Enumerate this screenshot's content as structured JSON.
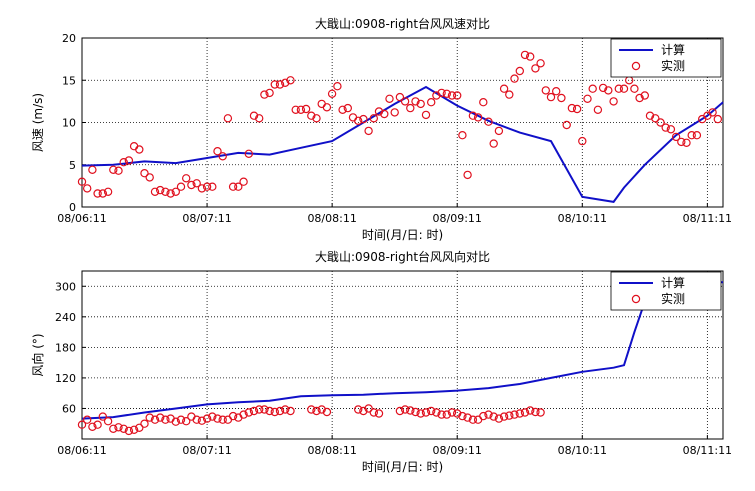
{
  "chart_data": [
    {
      "type": "line",
      "title": "大戢山:0908-right台风风速对比",
      "xlabel": "时间(月/日: 时)",
      "ylabel": "风速 (m/s)",
      "x_ticks": [
        "08/06:11",
        "08/07:11",
        "08/08:11",
        "08/09:11",
        "08/10:11",
        "08/11:11"
      ],
      "xlim": [
        0,
        123
      ],
      "ylim": [
        0,
        20
      ],
      "y_ticks": [
        0,
        5,
        10,
        15,
        20
      ],
      "grid": true,
      "legend_position": "top-right",
      "colors": {
        "computed": "#1010c8",
        "measured": "#e0101e"
      },
      "series": [
        {
          "name": "计算",
          "style": "line",
          "x": [
            0,
            6,
            12,
            18,
            24,
            30,
            36,
            42,
            48,
            54,
            60,
            66,
            72,
            78,
            84,
            90,
            96,
            102,
            104,
            108,
            114,
            120,
            123
          ],
          "values": [
            4.9,
            5.0,
            5.4,
            5.2,
            5.8,
            6.4,
            6.2,
            7.0,
            7.8,
            10.0,
            12.2,
            14.2,
            12.0,
            10.2,
            8.8,
            7.8,
            1.2,
            0.6,
            2.3,
            5.0,
            8.5,
            10.8,
            12.4
          ]
        },
        {
          "name": "实测",
          "style": "marker",
          "x": [
            0,
            1,
            2,
            3,
            4,
            5,
            6,
            7,
            8,
            9,
            10,
            11,
            12,
            13,
            14,
            15,
            16,
            17,
            18,
            19,
            20,
            21,
            22,
            23,
            24,
            25,
            26,
            27,
            28,
            29,
            30,
            31,
            32,
            33,
            34,
            35,
            36,
            37,
            38,
            39,
            40,
            41,
            42,
            43,
            44,
            45,
            46,
            47,
            48,
            49,
            50,
            51,
            52,
            53,
            54,
            55,
            56,
            57,
            58,
            59,
            60,
            61,
            62,
            63,
            64,
            65,
            66,
            67,
            68,
            69,
            70,
            71,
            72,
            73,
            74,
            75,
            76,
            77,
            78,
            79,
            80,
            81,
            82,
            83,
            84,
            85,
            86,
            87,
            88,
            89,
            90,
            91,
            92,
            93,
            94,
            95,
            96,
            97,
            98,
            99,
            100,
            101,
            102,
            103,
            104,
            105,
            106,
            107,
            108,
            109,
            110,
            111,
            112,
            113,
            114,
            115,
            116,
            117,
            118,
            119,
            120,
            121,
            122
          ],
          "values": [
            3.0,
            2.2,
            4.4,
            1.6,
            1.6,
            1.8,
            4.4,
            4.3,
            5.3,
            5.5,
            7.2,
            6.8,
            4.0,
            3.5,
            1.8,
            2.0,
            1.8,
            1.6,
            1.8,
            2.4,
            3.4,
            2.6,
            2.8,
            2.2,
            2.4,
            2.4,
            6.6,
            6.0,
            10.5,
            2.4,
            2.4,
            3.0,
            6.3,
            10.8,
            10.5,
            13.3,
            13.5,
            14.5,
            14.5,
            14.7,
            15.0,
            11.5,
            11.5,
            11.6,
            10.8,
            10.5,
            12.2,
            11.8,
            13.4,
            14.3,
            11.5,
            11.7,
            10.6,
            10.2,
            10.4,
            9.0,
            10.5,
            11.3,
            11.0,
            12.8,
            11.2,
            13.0,
            12.5,
            11.7,
            12.5,
            12.2,
            10.9,
            12.4,
            13.2,
            13.5,
            13.4,
            13.2,
            13.2,
            8.5,
            3.8,
            10.8,
            10.6,
            12.4,
            10.1,
            7.5,
            9.0,
            14.0,
            13.3,
            15.2,
            16.1,
            18.0,
            17.8,
            16.4,
            17.0,
            13.8,
            13.0,
            13.7,
            12.9,
            9.7,
            11.7,
            11.6,
            7.8,
            12.8,
            14.0,
            11.5,
            14.1,
            13.8,
            12.5,
            14.0,
            14.0,
            15.0,
            14.0,
            12.9,
            13.2,
            10.8,
            10.5,
            10.0,
            9.4,
            9.2,
            8.3,
            7.7,
            7.6,
            8.5,
            8.5,
            10.4,
            10.8,
            11.2,
            10.4
          ]
        }
      ]
    },
    {
      "type": "line",
      "title": "大戢山:0908-right台风风向对比",
      "xlabel": "时间(月/日: 时)",
      "ylabel": "风向 (°)",
      "x_ticks": [
        "08/06:11",
        "08/07:11",
        "08/08:11",
        "08/09:11",
        "08/10:11",
        "08/11:11"
      ],
      "xlim": [
        0,
        123
      ],
      "ylim": [
        0,
        330
      ],
      "y_ticks": [
        60,
        120,
        180,
        240,
        300
      ],
      "grid": true,
      "legend_position": "top-right",
      "colors": {
        "computed": "#1010c8",
        "measured": "#e0101e"
      },
      "series": [
        {
          "name": "计算",
          "style": "line",
          "x": [
            0,
            6,
            12,
            18,
            24,
            30,
            36,
            42,
            48,
            54,
            60,
            66,
            72,
            78,
            84,
            90,
            96,
            102,
            104,
            106,
            109,
            110,
            111,
            123
          ],
          "values": [
            40,
            43,
            52,
            60,
            68,
            72,
            75,
            84,
            86,
            87,
            90,
            92,
            95,
            100,
            108,
            120,
            132,
            140,
            145,
            210,
            300,
            305,
            308,
            308
          ]
        },
        {
          "name": "实测",
          "style": "marker",
          "x": [
            0,
            1,
            2,
            3,
            4,
            5,
            6,
            7,
            8,
            9,
            10,
            11,
            12,
            13,
            14,
            15,
            16,
            17,
            18,
            19,
            20,
            21,
            22,
            23,
            24,
            25,
            26,
            27,
            28,
            29,
            30,
            31,
            32,
            33,
            34,
            35,
            36,
            37,
            38,
            39,
            40,
            44,
            45,
            46,
            47,
            53,
            54,
            55,
            56,
            57,
            61,
            62,
            63,
            64,
            65,
            66,
            67,
            68,
            69,
            70,
            71,
            72,
            73,
            74,
            75,
            76,
            77,
            78,
            79,
            80,
            81,
            82,
            83,
            84,
            85,
            86,
            87,
            88
          ],
          "values": [
            28,
            38,
            24,
            28,
            44,
            35,
            20,
            23,
            20,
            16,
            18,
            22,
            30,
            42,
            38,
            42,
            38,
            40,
            34,
            38,
            35,
            44,
            38,
            36,
            40,
            44,
            40,
            38,
            38,
            45,
            42,
            48,
            52,
            55,
            58,
            58,
            55,
            53,
            55,
            58,
            55,
            58,
            55,
            58,
            53,
            58,
            55,
            60,
            52,
            50,
            55,
            58,
            56,
            53,
            50,
            52,
            55,
            52,
            48,
            48,
            52,
            50,
            45,
            42,
            38,
            38,
            45,
            48,
            44,
            40,
            44,
            46,
            48,
            50,
            52,
            56,
            53,
            52
          ]
        }
      ]
    }
  ]
}
